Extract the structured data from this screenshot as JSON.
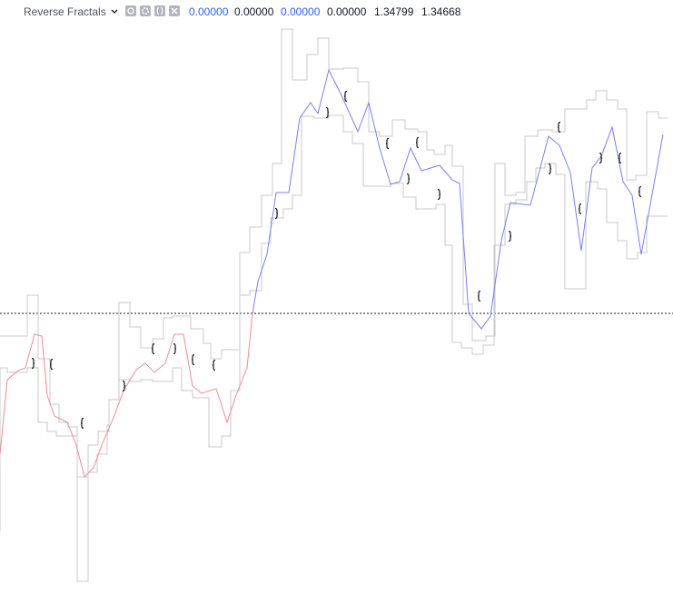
{
  "header": {
    "title": "Reverse Fractals",
    "values": [
      "0.00000",
      "0.00000",
      "0.00000",
      "0.00000",
      "1.34799",
      "1.34668"
    ]
  }
}
